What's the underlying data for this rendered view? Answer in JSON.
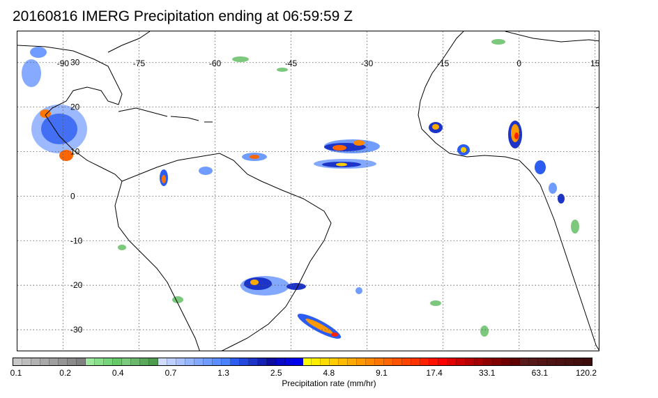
{
  "title": "20160816 IMERG Precipitation ending at 06:59:59 Z",
  "map": {
    "lon_labels": [
      "-90",
      "-75",
      "-60",
      "-45",
      "-30",
      "-15",
      "0",
      "15"
    ],
    "lat_labels": [
      "30",
      "20",
      "10",
      "0",
      "-10",
      "-20",
      "-30"
    ],
    "lon_values": [
      -90,
      -75,
      -60,
      -45,
      -30,
      -15,
      0,
      15
    ],
    "lat_values": [
      30,
      20,
      10,
      0,
      -10,
      -20,
      -30
    ],
    "lon_range": [
      -99,
      16
    ],
    "lat_range": [
      37,
      -35
    ],
    "gridline_style": "dotted",
    "coastline_color": "#000000"
  },
  "colorbar": {
    "title": "Precipitation rate (mm/hr)",
    "tick_labels": [
      "0.1",
      "0.2",
      "0.4",
      "0.7",
      "1.3",
      "2.5",
      "4.8",
      "9.1",
      "17.4",
      "33.1",
      "63.1",
      "120.2"
    ],
    "colors": [
      "#c8c8c8",
      "#bdbdbd",
      "#b2b2b2",
      "#a8a8a8",
      "#9e9e9e",
      "#949494",
      "#8a8a8a",
      "#808080",
      "#9ee89e",
      "#8ae08a",
      "#78d478",
      "#66c866",
      "#7cc87c",
      "#6ab86a",
      "#5aa85a",
      "#4e9a4e",
      "#cfdcff",
      "#bccfff",
      "#a9c2ff",
      "#96b5ff",
      "#83a8ff",
      "#709bff",
      "#5d8eff",
      "#4a81ff",
      "#2c5cf0",
      "#2448dc",
      "#1c34c8",
      "#1420b4",
      "#0c0ca0",
      "#0808c8",
      "#0404e0",
      "#0000f0",
      "#ffff00",
      "#ffee00",
      "#ffdd00",
      "#ffcc00",
      "#ffbb00",
      "#ffaa00",
      "#ff9900",
      "#ff8800",
      "#ff7700",
      "#ff6600",
      "#ff5500",
      "#ff4400",
      "#ff3300",
      "#ff2200",
      "#ff1100",
      "#ff0000",
      "#e00000",
      "#cc0000",
      "#b80000",
      "#a40000",
      "#900000",
      "#800000",
      "#700000",
      "#600000",
      "#5a1a1a",
      "#561818",
      "#521616",
      "#4e1414",
      "#4a1212",
      "#461010",
      "#420e0e",
      "#3e0c0c"
    ]
  }
}
